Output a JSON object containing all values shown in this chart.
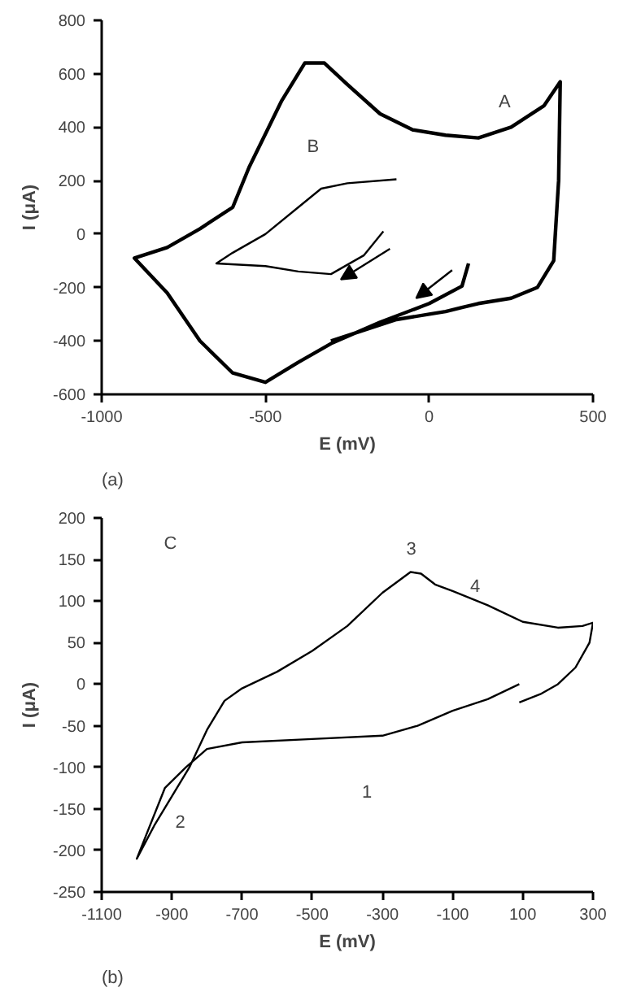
{
  "chart_data": [
    {
      "type": "line",
      "xlabel": "E (mV)",
      "ylabel": "I (μA)",
      "xlim": [
        -1000,
        500
      ],
      "ylim": [
        -600,
        800
      ],
      "xticks": [
        -1000,
        -500,
        0,
        500
      ],
      "yticks": [
        -600,
        -400,
        -200,
        0,
        200,
        400,
        600,
        800
      ],
      "grid": false,
      "marker": "none",
      "line_style": "solid",
      "annotations": [
        "(a)",
        "A",
        "B"
      ],
      "series": [
        {
          "color": "#000000",
          "x": [
            120,
            100,
            0,
            -150,
            -300,
            -400,
            -500,
            -600,
            -700,
            -800,
            -900,
            -800,
            -700,
            -600,
            -550,
            -450,
            -380,
            -320,
            -250,
            -150,
            -50,
            50,
            150,
            250,
            350,
            400,
            395,
            380,
            330,
            250,
            150,
            100,
            50,
            0,
            -100,
            -200,
            -300
          ],
          "values": [
            -110,
            -195,
            -260,
            -330,
            -410,
            -480,
            -555,
            -520,
            -400,
            -220,
            -90,
            -50,
            20,
            100,
            250,
            500,
            640,
            640,
            560,
            450,
            390,
            370,
            360,
            400,
            480,
            570,
            200,
            -100,
            -200,
            -240,
            -260,
            -275,
            -290,
            -300,
            -320,
            -360,
            -400
          ]
        },
        {
          "color": "#000000",
          "x": [
            -140,
            -200,
            -300,
            -400,
            -500,
            -650,
            -600,
            -500,
            -400,
            -330,
            -250,
            -100
          ],
          "values": [
            10,
            -80,
            -150,
            -140,
            -120,
            -110,
            -70,
            0,
            100,
            170,
            190,
            205
          ]
        }
      ]
    },
    {
      "type": "line",
      "xlabel": "E (mV)",
      "ylabel": "I (μA)",
      "xlim": [
        -1100,
        300
      ],
      "ylim": [
        -250,
        200
      ],
      "xticks": [
        -1100,
        -900,
        -700,
        -500,
        -300,
        -100,
        100,
        300
      ],
      "yticks": [
        -250,
        -200,
        -150,
        -100,
        -50,
        0,
        50,
        100,
        150,
        200
      ],
      "grid": false,
      "marker": "none",
      "line_style": "solid",
      "annotations": [
        "(b)",
        "C",
        "1",
        "2",
        "3",
        "4"
      ],
      "series": [
        {
          "color": "#000000",
          "x": [
            90,
            0,
            -100,
            -200,
            -300,
            -500,
            -700,
            -800,
            -860,
            -920,
            -1000,
            -950,
            -900,
            -850,
            -800,
            -750,
            -700,
            -600,
            -500,
            -400,
            -300,
            -220,
            -190,
            -150,
            -100,
            0,
            100,
            200,
            270,
            300,
            290,
            250,
            200,
            150,
            90
          ],
          "values": [
            0,
            -18,
            -32,
            -50,
            -62,
            -66,
            -70,
            -78,
            -100,
            -125,
            -210,
            -170,
            -135,
            -100,
            -55,
            -20,
            -5,
            15,
            40,
            70,
            110,
            135,
            133,
            120,
            112,
            95,
            75,
            68,
            70,
            74,
            50,
            20,
            0,
            -12,
            -22
          ]
        }
      ]
    }
  ]
}
